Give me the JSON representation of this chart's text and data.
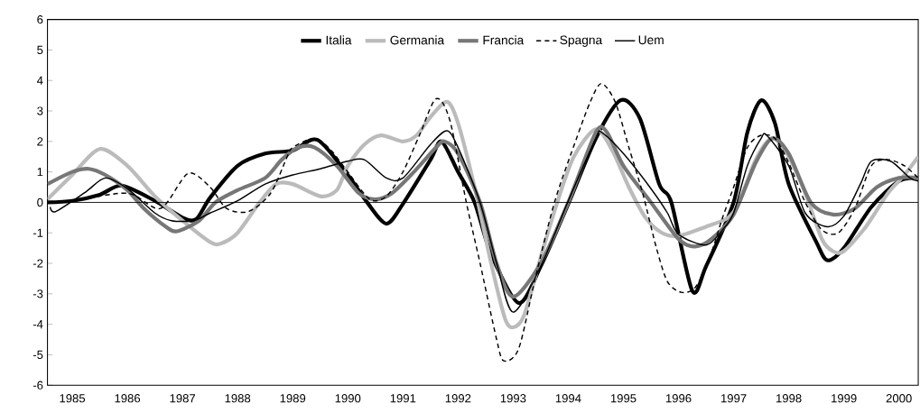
{
  "chart_data": {
    "type": "line",
    "xlim": [
      1984.55,
      2000.35
    ],
    "xticks": [
      1985,
      1986,
      1987,
      1988,
      1989,
      1990,
      1991,
      1992,
      1993,
      1994,
      1995,
      1996,
      1997,
      1998,
      1999,
      2000
    ],
    "ylim": [
      -6,
      6
    ],
    "yticks": [
      -6,
      -5,
      -4,
      -3,
      -2,
      -1,
      0,
      1,
      2,
      3,
      4,
      5,
      6
    ],
    "legend": "top",
    "grid": false,
    "marker": "none",
    "ref_lines": [
      {
        "axis": "y",
        "value": 0,
        "color": "#000000"
      }
    ],
    "series": [
      {
        "name": "Italia",
        "color": "#000000",
        "line_style": "solid",
        "x": [
          1984.55,
          1985,
          1985.5,
          1985.9,
          1986.5,
          1987,
          1987.25,
          1987.5,
          1988,
          1988.5,
          1989,
          1989.45,
          1990,
          1990.35,
          1990.7,
          1991,
          1991.5,
          1991.7,
          1992,
          1992.3,
          1992.6,
          1993.1,
          1993.5,
          1994,
          1994.5,
          1994.95,
          1995.3,
          1995.65,
          1995.87,
          1996.25,
          1996.5,
          1997,
          1997.25,
          1997.5,
          1997.75,
          1998,
          1998.5,
          1998.7,
          1999,
          1999.5,
          2000,
          2000.35
        ],
        "values": [
          0,
          0.05,
          0.25,
          0.55,
          0.05,
          -0.5,
          -0.55,
          0.15,
          1.2,
          1.6,
          1.7,
          2.05,
          0.9,
          0,
          -0.7,
          -0.05,
          1.4,
          2.0,
          1.0,
          0,
          -1.7,
          -3.3,
          -2.1,
          -0.05,
          2.1,
          3.35,
          2.75,
          0.6,
          0,
          -2.9,
          -2.1,
          0,
          2.3,
          3.35,
          2.6,
          0.6,
          -1.3,
          -1.9,
          -1.5,
          -0.15,
          0.7,
          0.8
        ]
      },
      {
        "name": "Germania",
        "color": "#bbbbbb",
        "line_style": "solid",
        "x": [
          1984.55,
          1985,
          1985.5,
          1986,
          1986.5,
          1987,
          1987.5,
          1987.7,
          1988,
          1988.4,
          1988.7,
          1989,
          1989.5,
          1989.8,
          1990,
          1990.3,
          1990.6,
          1991,
          1991.25,
          1991.5,
          1991.8,
          1992,
          1992.3,
          1992.6,
          1992.85,
          1993,
          1993.2,
          1993.5,
          1993.8,
          1994.1,
          1994.5,
          1994.8,
          1995.1,
          1995.4,
          1995.7,
          1996,
          1996.5,
          1996.9,
          1997.1,
          1997.4,
          1997.7,
          1998,
          1998.3,
          1998.6,
          1998.8,
          1999,
          1999.4,
          1999.8,
          2000.1,
          2000.35
        ],
        "values": [
          0.1,
          0.9,
          1.75,
          1.2,
          0.2,
          -0.6,
          -1.3,
          -1.35,
          -1.0,
          0,
          0.6,
          0.6,
          0.2,
          0.4,
          1.2,
          1.9,
          2.2,
          2.0,
          2.2,
          2.8,
          3.3,
          2.6,
          0.5,
          -2.0,
          -3.8,
          -4.1,
          -3.7,
          -1.8,
          0,
          1.5,
          2.4,
          1.7,
          0.5,
          -0.5,
          -1.0,
          -1.1,
          -0.8,
          -0.5,
          0,
          1.4,
          2.1,
          1.5,
          0.3,
          -1.2,
          -1.6,
          -1.6,
          -0.8,
          0.3,
          0.9,
          1.5
        ]
      },
      {
        "name": "Francia",
        "color": "#777777",
        "line_style": "solid",
        "x": [
          1984.55,
          1985,
          1985.3,
          1985.6,
          1986,
          1986.3,
          1986.7,
          1986.9,
          1987.3,
          1987.6,
          1988,
          1988.5,
          1988.8,
          1989.1,
          1989.4,
          1989.8,
          1990.2,
          1990.5,
          1990.8,
          1991.2,
          1991.6,
          1991.75,
          1992,
          1992.4,
          1992.7,
          1993,
          1993.5,
          1994,
          1994.5,
          1994.7,
          1995,
          1995.5,
          1996,
          1996.3,
          1996.6,
          1997,
          1997.4,
          1997.7,
          1998,
          1998.4,
          1998.8,
          1999.2,
          1999.6,
          2000,
          2000.35
        ],
        "values": [
          0.6,
          1.0,
          1.1,
          0.9,
          0.4,
          -0.2,
          -0.8,
          -0.95,
          -0.6,
          0,
          0.4,
          0.8,
          1.4,
          1.8,
          1.8,
          1.2,
          0.3,
          0.1,
          0.3,
          1.0,
          1.8,
          2.0,
          1.6,
          0,
          -2.0,
          -3.1,
          -2.0,
          0,
          2.3,
          2.3,
          1.2,
          0,
          -1.2,
          -1.45,
          -1.2,
          -0.4,
          1.3,
          2.1,
          1.6,
          0,
          -0.4,
          -0.2,
          0.5,
          0.8,
          0.8
        ]
      },
      {
        "name": "Spagna",
        "color": "#000000",
        "line_style": "dashed",
        "x": [
          1984.55,
          1985,
          1986,
          1986.6,
          1987.1,
          1987.5,
          1987.8,
          1988.2,
          1988.6,
          1988.9,
          1989,
          1989.4,
          1989.7,
          1990,
          1990.4,
          1990.7,
          1991,
          1991.3,
          1991.6,
          1991.85,
          1992.15,
          1992.4,
          1992.7,
          1992.83,
          1993.1,
          1993.4,
          1993.75,
          1994.15,
          1994.4,
          1994.6,
          1994.85,
          1995.1,
          1995.35,
          1995.6,
          1995.8,
          1996.05,
          1996.3,
          1996.55,
          1996.8,
          1997,
          1997.25,
          1997.5,
          1997.75,
          1998,
          1998.3,
          1998.6,
          1998.9,
          1999.2,
          1999.5,
          1999.8,
          2000.1,
          2000.35
        ],
        "values": [
          0,
          0.05,
          0.3,
          -0.2,
          0.95,
          0.5,
          -0.2,
          -0.3,
          0.3,
          1.5,
          1.8,
          2.1,
          1.7,
          1.0,
          0.1,
          0.2,
          1.0,
          2.2,
          3.4,
          2.7,
          0,
          -2.0,
          -4.5,
          -5.2,
          -4.8,
          -2.5,
          0,
          2.1,
          3.3,
          3.9,
          3.3,
          1.8,
          0.3,
          -1.5,
          -2.6,
          -2.95,
          -2.8,
          -1.9,
          -0.5,
          0.5,
          1.8,
          2.2,
          2.1,
          1.3,
          0,
          -0.9,
          -1.0,
          -0.2,
          1.2,
          1.4,
          1.2,
          0.8
        ]
      },
      {
        "name": "Uem",
        "color": "#000000",
        "line_style": "solid",
        "x": [
          1984.6,
          1984.7,
          1985.25,
          1985.6,
          1986,
          1986.5,
          1986.8,
          1987.2,
          1987.5,
          1988,
          1988.5,
          1989,
          1989.5,
          1990,
          1990.3,
          1990.7,
          1991,
          1991.5,
          1991.8,
          1992,
          1992.4,
          1992.7,
          1993,
          1993.5,
          1994,
          1994.5,
          1994.6,
          1995,
          1995.5,
          1995.8,
          1996,
          1996.5,
          1996.8,
          1997,
          1997.25,
          1997.5,
          1997.6,
          1998,
          1998.3,
          1998.7,
          1999,
          1999.3,
          1999.5,
          1999.85,
          2000.2,
          2000.35
        ],
        "values": [
          -0.15,
          -0.3,
          0.35,
          0.8,
          0.45,
          -0.35,
          -0.6,
          -0.6,
          -0.35,
          0.05,
          0.6,
          0.9,
          1.1,
          1.35,
          1.4,
          0.8,
          0.8,
          1.9,
          2.35,
          1.8,
          0,
          -2.0,
          -3.6,
          -2.1,
          0.05,
          2.1,
          2.3,
          1.6,
          0.45,
          -0.35,
          -1.05,
          -1.4,
          -0.9,
          -0.35,
          1.2,
          2.1,
          2.2,
          1.2,
          -0.35,
          -0.8,
          -0.45,
          0.6,
          1.35,
          1.35,
          0.8,
          0.7
        ]
      }
    ]
  }
}
